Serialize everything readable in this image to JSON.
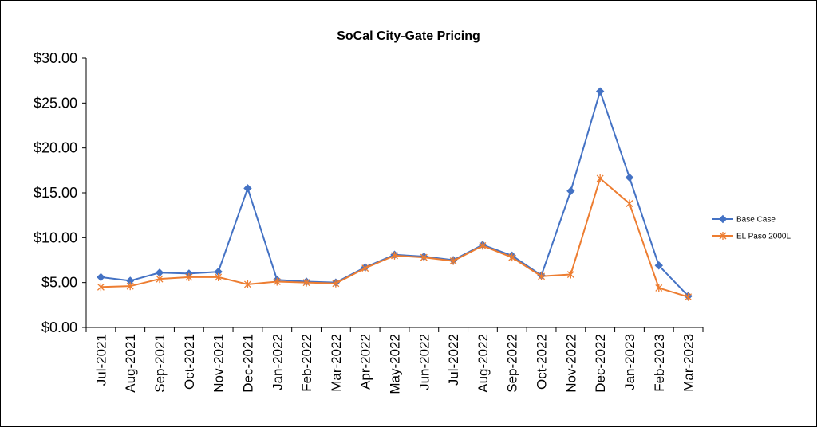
{
  "chart_data": {
    "type": "line",
    "title": "SoCal City-Gate Pricing",
    "xlabel": "",
    "ylabel": "",
    "categories": [
      "Jul-2021",
      "Aug-2021",
      "Sep-2021",
      "Oct-2021",
      "Nov-2021",
      "Dec-2021",
      "Jan-2022",
      "Feb-2022",
      "Mar-2022",
      "Apr-2022",
      "May-2022",
      "Jun-2022",
      "Jul-2022",
      "Aug-2022",
      "Sep-2022",
      "Oct-2022",
      "Nov-2022",
      "Dec-2022",
      "Jan-2023",
      "Feb-2023",
      "Mar-2023"
    ],
    "ylim": [
      0,
      30
    ],
    "yticks": [
      0,
      5,
      10,
      15,
      20,
      25,
      30
    ],
    "ytick_labels": [
      "$0.00",
      "$5.00",
      "$10.00",
      "$15.00",
      "$20.00",
      "$25.00",
      "$30.00"
    ],
    "grid": false,
    "legend_position": "right",
    "series": [
      {
        "name": "Base Case",
        "color": "#4472C4",
        "marker": "diamond",
        "values": [
          5.6,
          5.2,
          6.1,
          6.0,
          6.2,
          15.5,
          5.3,
          5.1,
          5.0,
          6.7,
          8.1,
          7.9,
          7.5,
          9.2,
          8.0,
          5.8,
          15.2,
          26.3,
          16.7,
          6.9,
          3.5
        ]
      },
      {
        "name": "EL Paso 2000L",
        "color": "#ED7D31",
        "marker": "star",
        "values": [
          4.5,
          4.6,
          5.4,
          5.6,
          5.6,
          4.8,
          5.1,
          5.0,
          4.9,
          6.6,
          8.0,
          7.8,
          7.4,
          9.1,
          7.8,
          5.7,
          5.9,
          16.6,
          13.8,
          4.4,
          3.4
        ]
      }
    ]
  }
}
